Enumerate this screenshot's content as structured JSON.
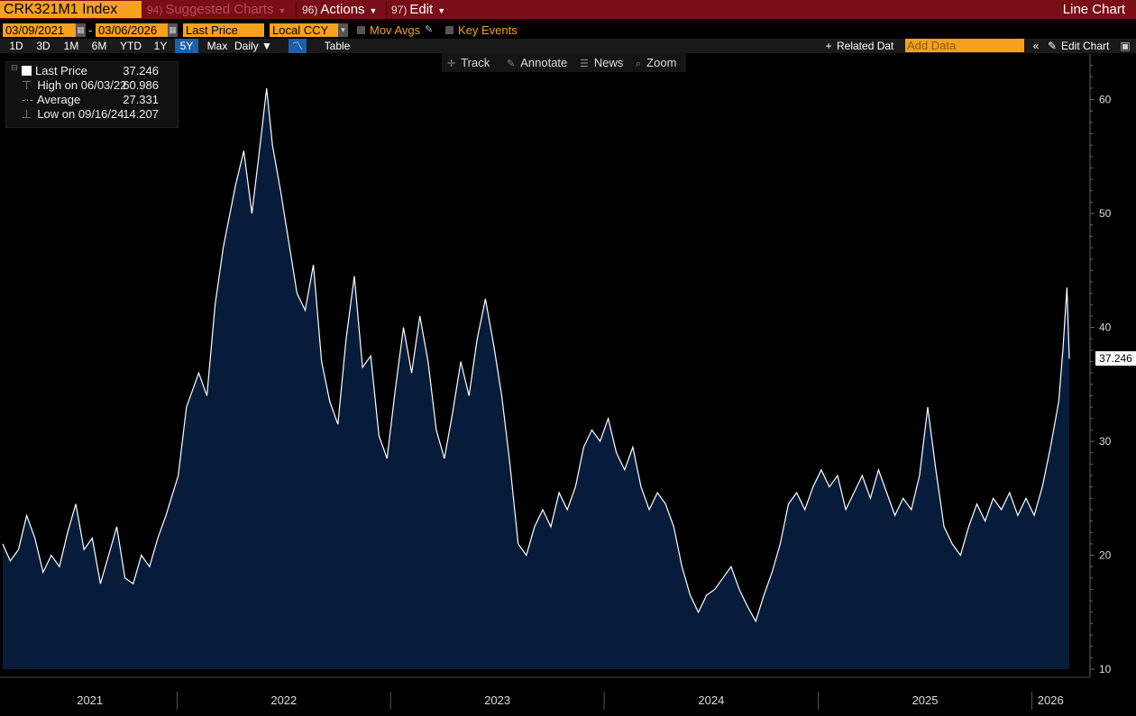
{
  "header": {
    "ticker": "CRK321M1 Index",
    "suggested": {
      "num": "94)",
      "label": "Suggested Charts"
    },
    "actions": {
      "num": "96)",
      "label": "Actions"
    },
    "edit": {
      "num": "97)",
      "label": "Edit"
    },
    "title": "Line Chart"
  },
  "controls": {
    "start_date": "03/09/2021",
    "date_dash": "-",
    "end_date": "03/06/2026",
    "field": "Last Price",
    "currency": "Local CCY",
    "mov_avgs": "Mov Avgs",
    "key_events": "Key Events"
  },
  "periods": [
    "1D",
    "3D",
    "1M",
    "6M",
    "YTD",
    "1Y",
    "5Y",
    "Max"
  ],
  "active_period": "5Y",
  "frequency": "Daily",
  "table_label": "Table",
  "related_data": "Related Dat",
  "add_data_placeholder": "Add Data",
  "edit_chart": "Edit Chart",
  "chart_tools": {
    "track": "Track",
    "annotate": "Annotate",
    "news": "News",
    "zoom": "Zoom"
  },
  "legend": {
    "last_label": "Last Price",
    "last_value": "37.246",
    "high_label": "High on 06/03/22",
    "high_value": "60.986",
    "avg_label": "Average",
    "avg_value": "27.331",
    "low_label": "Low on 09/16/24",
    "low_value": "14.207"
  },
  "colors": {
    "accent": "#f6a11d",
    "header_bg": "#7a0e17",
    "area_fill": "#061c3a",
    "line": "#ffffff"
  },
  "chart_data": {
    "type": "area",
    "ylim": [
      10,
      64
    ],
    "yticks": [
      10,
      20,
      30,
      40,
      50,
      60
    ],
    "xlabels": [
      "2021",
      "2022",
      "2023",
      "2024",
      "2025",
      "2026"
    ],
    "last_value_label": "37.246",
    "series": [
      {
        "values": [
          [
            "2021-03-09",
            21.0
          ],
          [
            "2021-03-22",
            19.5
          ],
          [
            "2021-04-05",
            20.5
          ],
          [
            "2021-04-19",
            23.5
          ],
          [
            "2021-05-03",
            21.5
          ],
          [
            "2021-05-17",
            18.5
          ],
          [
            "2021-05-31",
            20.0
          ],
          [
            "2021-06-14",
            19.0
          ],
          [
            "2021-06-28",
            22.0
          ],
          [
            "2021-07-12",
            24.5
          ],
          [
            "2021-07-26",
            20.5
          ],
          [
            "2021-08-09",
            21.5
          ],
          [
            "2021-08-23",
            17.5
          ],
          [
            "2021-09-06",
            20.0
          ],
          [
            "2021-09-20",
            22.5
          ],
          [
            "2021-10-04",
            18.0
          ],
          [
            "2021-10-18",
            17.5
          ],
          [
            "2021-11-01",
            20.0
          ],
          [
            "2021-11-15",
            19.0
          ],
          [
            "2021-11-29",
            21.5
          ],
          [
            "2021-12-13",
            23.5
          ],
          [
            "2022-01-03",
            27.0
          ],
          [
            "2022-01-17",
            33.0
          ],
          [
            "2022-02-07",
            36.0
          ],
          [
            "2022-02-21",
            34.0
          ],
          [
            "2022-03-07",
            42.0
          ],
          [
            "2022-03-21",
            47.0
          ],
          [
            "2022-04-11",
            52.5
          ],
          [
            "2022-04-25",
            55.5
          ],
          [
            "2022-05-09",
            50.0
          ],
          [
            "2022-05-23",
            56.0
          ],
          [
            "2022-06-03",
            60.986
          ],
          [
            "2022-06-13",
            56.0
          ],
          [
            "2022-06-27",
            52.0
          ],
          [
            "2022-07-11",
            47.5
          ],
          [
            "2022-07-25",
            43.0
          ],
          [
            "2022-08-08",
            41.5
          ],
          [
            "2022-08-22",
            45.5
          ],
          [
            "2022-09-05",
            37.0
          ],
          [
            "2022-09-19",
            33.5
          ],
          [
            "2022-10-03",
            31.5
          ],
          [
            "2022-10-17",
            39.0
          ],
          [
            "2022-10-31",
            44.5
          ],
          [
            "2022-11-14",
            36.5
          ],
          [
            "2022-11-28",
            37.5
          ],
          [
            "2022-12-12",
            30.5
          ],
          [
            "2022-12-26",
            28.5
          ],
          [
            "2023-01-09",
            34.5
          ],
          [
            "2023-01-23",
            40.0
          ],
          [
            "2023-02-06",
            36.0
          ],
          [
            "2023-02-20",
            41.0
          ],
          [
            "2023-03-06",
            37.0
          ],
          [
            "2023-03-20",
            31.0
          ],
          [
            "2023-04-03",
            28.5
          ],
          [
            "2023-04-17",
            32.5
          ],
          [
            "2023-05-01",
            37.0
          ],
          [
            "2023-05-15",
            34.0
          ],
          [
            "2023-05-29",
            39.0
          ],
          [
            "2023-06-12",
            42.5
          ],
          [
            "2023-06-26",
            38.5
          ],
          [
            "2023-07-10",
            34.0
          ],
          [
            "2023-07-24",
            28.0
          ],
          [
            "2023-08-07",
            21.0
          ],
          [
            "2023-08-21",
            20.0
          ],
          [
            "2023-09-04",
            22.5
          ],
          [
            "2023-09-18",
            24.0
          ],
          [
            "2023-10-02",
            22.5
          ],
          [
            "2023-10-16",
            25.5
          ],
          [
            "2023-10-30",
            24.0
          ],
          [
            "2023-11-13",
            26.0
          ],
          [
            "2023-11-27",
            29.5
          ],
          [
            "2023-12-11",
            31.0
          ],
          [
            "2023-12-25",
            30.0
          ],
          [
            "2024-01-08",
            32.0
          ],
          [
            "2024-01-22",
            29.0
          ],
          [
            "2024-02-05",
            27.5
          ],
          [
            "2024-02-19",
            29.5
          ],
          [
            "2024-03-04",
            26.0
          ],
          [
            "2024-03-18",
            24.0
          ],
          [
            "2024-04-01",
            25.5
          ],
          [
            "2024-04-15",
            24.5
          ],
          [
            "2024-04-29",
            22.5
          ],
          [
            "2024-05-13",
            19.0
          ],
          [
            "2024-05-27",
            16.5
          ],
          [
            "2024-06-10",
            15.0
          ],
          [
            "2024-06-24",
            16.5
          ],
          [
            "2024-07-08",
            17.0
          ],
          [
            "2024-07-22",
            18.0
          ],
          [
            "2024-08-05",
            19.0
          ],
          [
            "2024-08-19",
            17.0
          ],
          [
            "2024-09-02",
            15.5
          ],
          [
            "2024-09-16",
            14.207
          ],
          [
            "2024-09-30",
            16.5
          ],
          [
            "2024-10-14",
            18.5
          ],
          [
            "2024-10-28",
            21.0
          ],
          [
            "2024-11-11",
            24.5
          ],
          [
            "2024-11-25",
            25.5
          ],
          [
            "2024-12-09",
            24.0
          ],
          [
            "2024-12-23",
            26.0
          ],
          [
            "2025-01-06",
            27.5
          ],
          [
            "2025-01-20",
            26.0
          ],
          [
            "2025-02-03",
            27.0
          ],
          [
            "2025-02-17",
            24.0
          ],
          [
            "2025-03-03",
            25.5
          ],
          [
            "2025-03-17",
            27.0
          ],
          [
            "2025-03-31",
            25.0
          ],
          [
            "2025-04-14",
            27.5
          ],
          [
            "2025-04-28",
            25.5
          ],
          [
            "2025-05-12",
            23.5
          ],
          [
            "2025-05-26",
            25.0
          ],
          [
            "2025-06-09",
            24.0
          ],
          [
            "2025-06-23",
            27.0
          ],
          [
            "2025-07-07",
            33.0
          ],
          [
            "2025-07-21",
            27.5
          ],
          [
            "2025-08-04",
            22.5
          ],
          [
            "2025-08-18",
            21.0
          ],
          [
            "2025-09-01",
            20.0
          ],
          [
            "2025-09-15",
            22.5
          ],
          [
            "2025-09-29",
            24.5
          ],
          [
            "2025-10-13",
            23.0
          ],
          [
            "2025-10-27",
            25.0
          ],
          [
            "2025-11-10",
            24.0
          ],
          [
            "2025-11-24",
            25.5
          ],
          [
            "2025-12-08",
            23.5
          ],
          [
            "2025-12-22",
            25.0
          ],
          [
            "2026-01-05",
            23.5
          ],
          [
            "2026-01-19",
            26.0
          ],
          [
            "2026-02-02",
            29.5
          ],
          [
            "2026-02-16",
            33.5
          ],
          [
            "2026-02-23",
            38.0
          ],
          [
            "2026-03-02",
            43.5
          ],
          [
            "2026-03-06",
            37.246
          ]
        ]
      }
    ]
  }
}
